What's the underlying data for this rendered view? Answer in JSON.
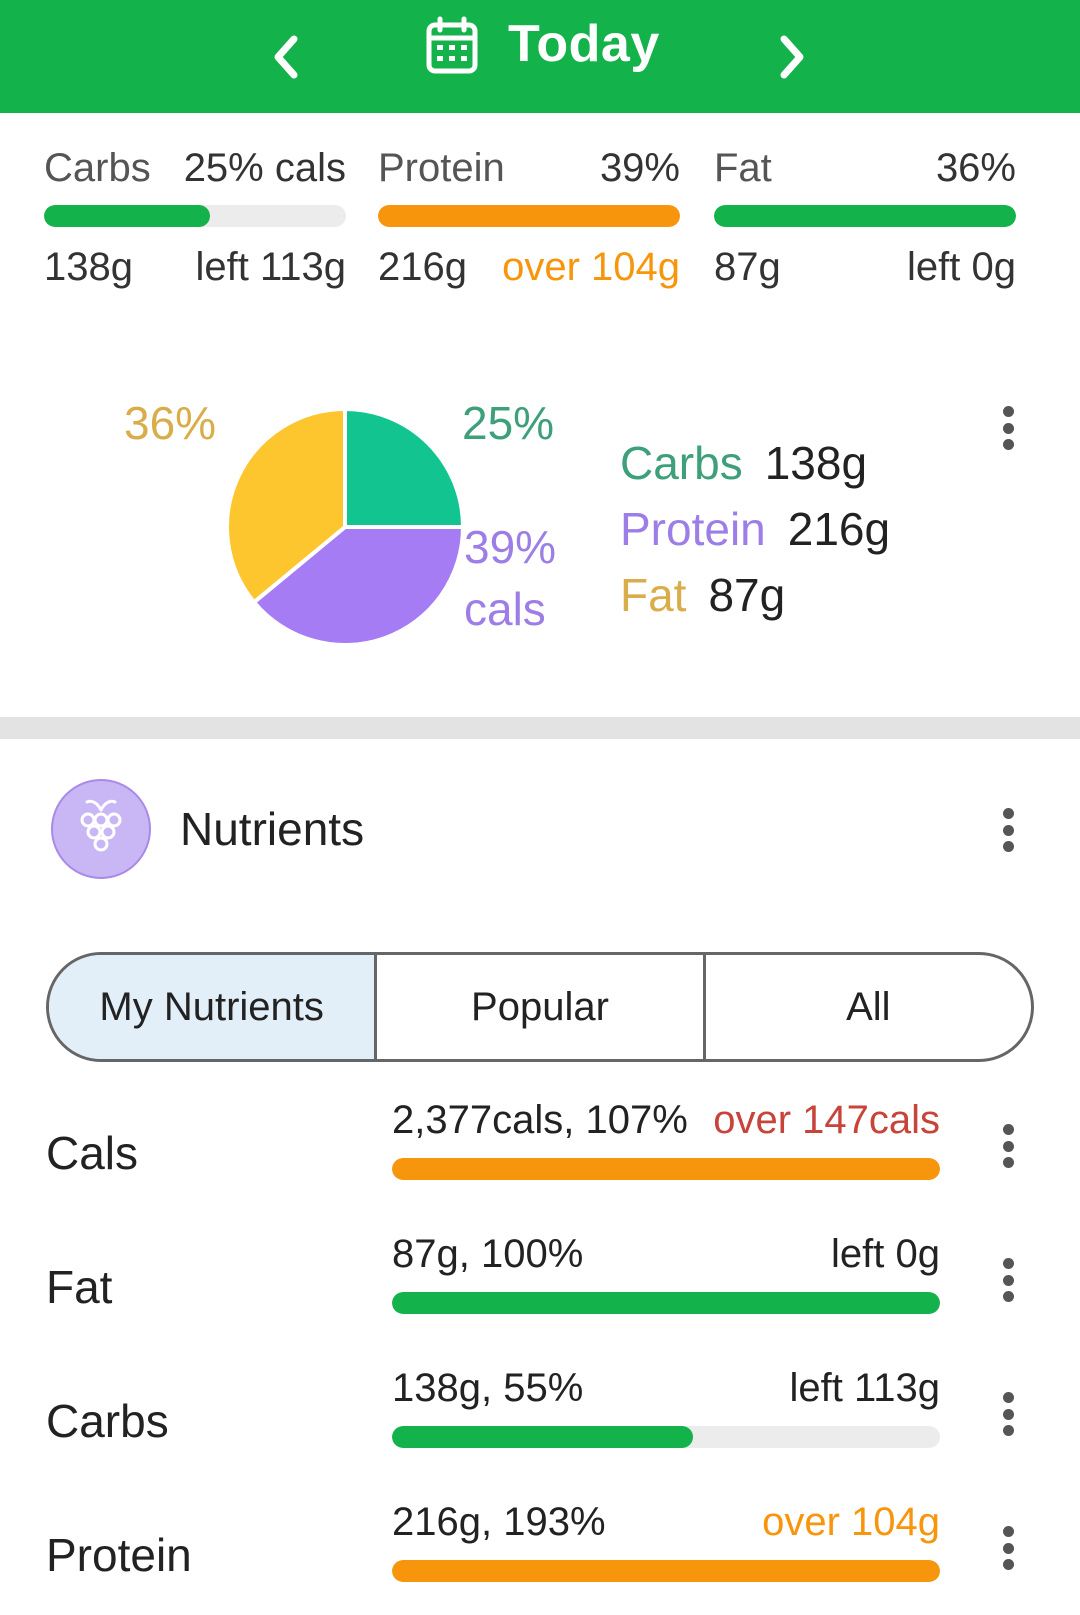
{
  "header": {
    "title": "Today",
    "prev_icon": "chevron-left-icon",
    "next_icon": "chevron-right-icon",
    "calendar_icon": "calendar-icon",
    "bg_color": "#14b24a"
  },
  "macros": [
    {
      "name": "Carbs",
      "pct_label": "25% cals",
      "grams": "138g",
      "status": "left 113g",
      "status_type": "left",
      "progress": 0.55,
      "color": "#14b24a"
    },
    {
      "name": "Protein",
      "pct_label": "39%",
      "grams": "216g",
      "status": "over 104g",
      "status_type": "over",
      "progress": 1.0,
      "color": "#f7960d"
    },
    {
      "name": "Fat",
      "pct_label": "36%",
      "grams": "87g",
      "status": "left 0g",
      "status_type": "left",
      "progress": 1.0,
      "color": "#14b24a"
    }
  ],
  "chart_data": {
    "type": "pie",
    "slices": [
      {
        "name": "Carbs",
        "value": 25,
        "color": "#12c48f",
        "legend_color": "#3ea07a",
        "label": "25%"
      },
      {
        "name": "Protein",
        "value": 39,
        "color": "#a67cf5",
        "legend_color": "#9d7ee6",
        "label": "39%"
      },
      {
        "name": "Fat",
        "value": 36,
        "color": "#fdc62f",
        "legend_color": "#d9ad49",
        "label": "36%"
      }
    ],
    "unit_label": "cals",
    "legend": [
      {
        "name": "Carbs",
        "value": "138g"
      },
      {
        "name": "Protein",
        "value": "216g"
      },
      {
        "name": "Fat",
        "value": "87g"
      }
    ]
  },
  "nutrients_section": {
    "title": "Nutrients",
    "icon": "grape-icon",
    "tabs": [
      "My Nutrients",
      "Popular",
      "All"
    ],
    "active_tab": 0
  },
  "nutrient_rows": [
    {
      "name": "Cals",
      "value": "2,377cals, 107%",
      "status": "over 147cals",
      "status_type": "over-red",
      "progress": 1.0,
      "bar_color": "#f7960d"
    },
    {
      "name": "Fat",
      "value": "87g, 100%",
      "status": "left 0g",
      "status_type": "left",
      "progress": 1.0,
      "bar_color": "#14b24a"
    },
    {
      "name": "Carbs",
      "value": "138g, 55%",
      "status": "left 113g",
      "status_type": "left",
      "progress": 0.55,
      "bar_color": "#14b24a"
    },
    {
      "name": "Protein",
      "value": "216g, 193%",
      "status": "over 104g",
      "status_type": "over",
      "progress": 1.0,
      "bar_color": "#f7960d"
    }
  ]
}
